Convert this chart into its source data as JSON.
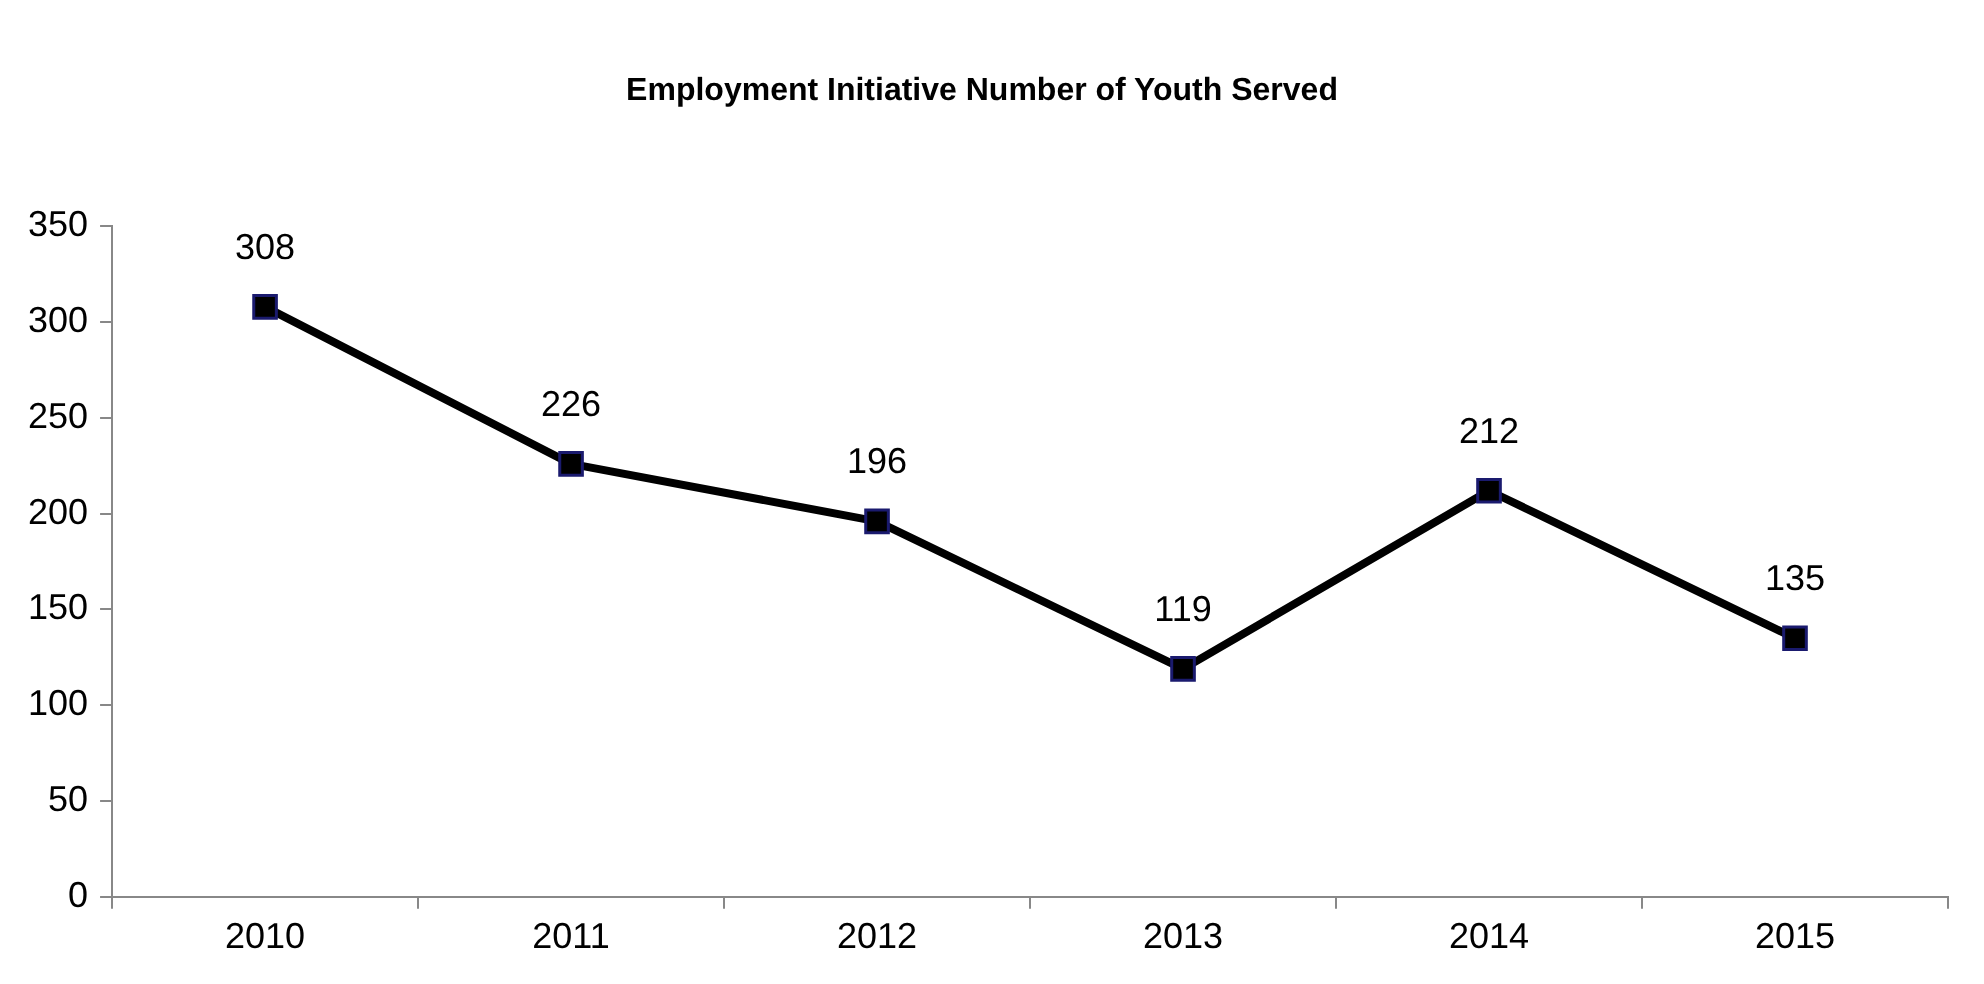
{
  "chart_data": {
    "type": "line",
    "title": "Employment Initiative Number of Youth Served",
    "categories": [
      "2010",
      "2011",
      "2012",
      "2013",
      "2014",
      "2015"
    ],
    "series": [
      {
        "color": "#000000",
        "values": [
          308,
          226,
          196,
          119,
          212,
          135
        ]
      }
    ],
    "ylim": [
      0,
      350
    ],
    "yticks": [
      0,
      50,
      100,
      150,
      200,
      250,
      300,
      350
    ],
    "grid": false,
    "legend": false,
    "marker": "square",
    "line_style": "solid",
    "data_labels": true
  }
}
